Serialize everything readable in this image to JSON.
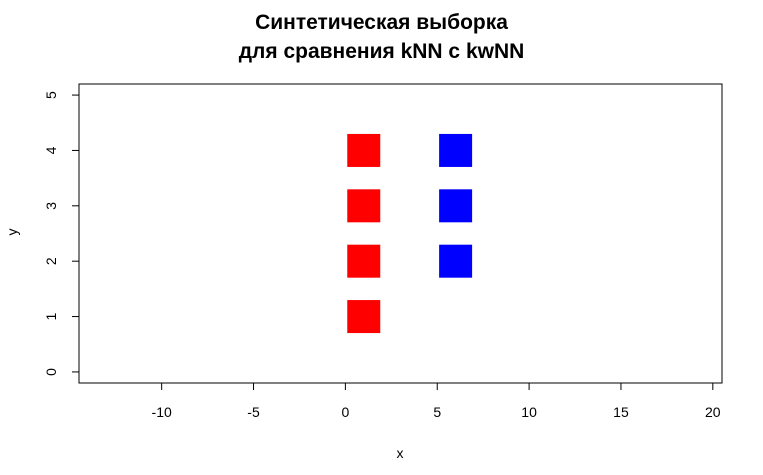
{
  "chart_data": {
    "type": "scatter",
    "title": [
      "Синтетическая выборка",
      "для сравнения kNN с kwNN"
    ],
    "xlabel": "x",
    "ylabel": "y",
    "xlim": [
      -14.5,
      20.5
    ],
    "ylim": [
      -0.2,
      5.2
    ],
    "x_ticks": [
      -10,
      -5,
      0,
      5,
      10,
      15,
      20
    ],
    "y_ticks": [
      0,
      1,
      2,
      3,
      4,
      5
    ],
    "marker": "filled square",
    "grid": false,
    "series": [
      {
        "color": "#ff0000",
        "points": [
          [
            1,
            1
          ],
          [
            1,
            2
          ],
          [
            1,
            3
          ],
          [
            1,
            4
          ]
        ]
      },
      {
        "color": "#0000ff",
        "points": [
          [
            6,
            2
          ],
          [
            6,
            3
          ],
          [
            6,
            4
          ]
        ]
      }
    ]
  }
}
